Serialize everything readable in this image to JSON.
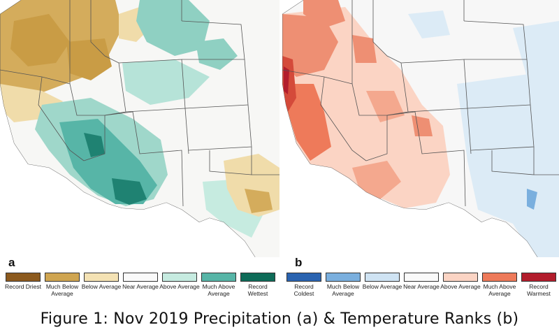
{
  "panel_a": {
    "letter": "a",
    "legend": [
      {
        "label": "Record Driest",
        "color": "#8c5a1e"
      },
      {
        "label": "Much Below Average",
        "color": "#cfa551"
      },
      {
        "label": "Below Average",
        "color": "#f4e2b4"
      },
      {
        "label": "Near Average",
        "color": "#fafafa"
      },
      {
        "label": "Above Average",
        "color": "#c6ebe0"
      },
      {
        "label": "Much Above Average",
        "color": "#57b5a7"
      },
      {
        "label": "Record Wettest",
        "color": "#0e6b58"
      }
    ]
  },
  "panel_b": {
    "letter": "b",
    "legend": [
      {
        "label": "Record Coldest",
        "color": "#2a63b0"
      },
      {
        "label": "Much Below Average",
        "color": "#7aafde"
      },
      {
        "label": "Below Average",
        "color": "#cfe3f3"
      },
      {
        "label": "Near Average",
        "color": "#fafafa"
      },
      {
        "label": "Above Average",
        "color": "#fbd4c4"
      },
      {
        "label": "Much Above Average",
        "color": "#ee7a5a"
      },
      {
        "label": "Record Warmest",
        "color": "#b21d2c"
      }
    ]
  },
  "caption": "Figure 1: Nov 2019 Precipitation (a) & Temperature Ranks (b)"
}
